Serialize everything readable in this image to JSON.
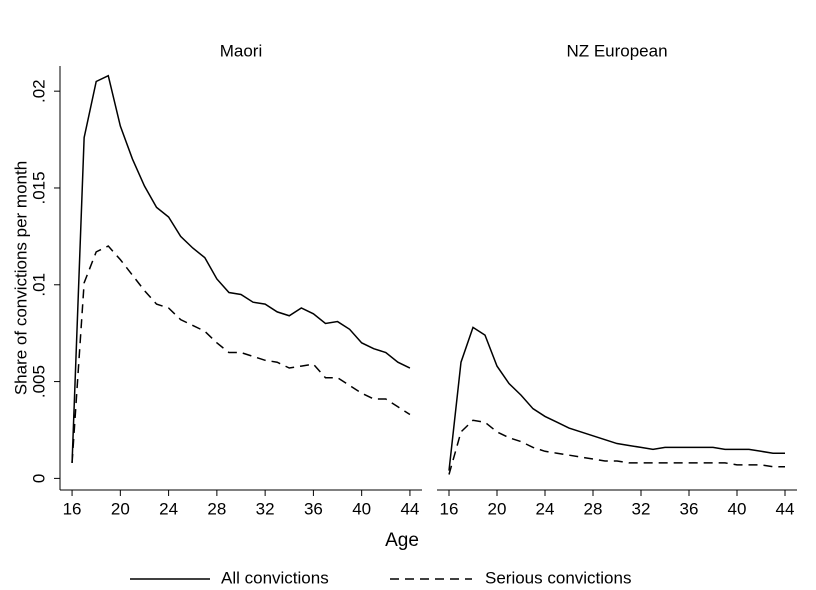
{
  "ylabel": "Share of convictions per month",
  "xlabel": "Age",
  "chart_data": [
    {
      "type": "line",
      "title": "Maori",
      "x": [
        16,
        17,
        18,
        19,
        20,
        21,
        22,
        23,
        24,
        25,
        26,
        27,
        28,
        29,
        30,
        31,
        32,
        33,
        34,
        35,
        36,
        37,
        38,
        39,
        40,
        41,
        42,
        43,
        44
      ],
      "series": [
        {
          "name": "All convictions",
          "color": "#000000",
          "dash": false,
          "values": [
            0.0008,
            0.0176,
            0.0205,
            0.0208,
            0.0182,
            0.0165,
            0.0151,
            0.014,
            0.0135,
            0.0125,
            0.0119,
            0.0114,
            0.0103,
            0.0096,
            0.0095,
            0.0091,
            0.009,
            0.0086,
            0.0084,
            0.0088,
            0.0085,
            0.008,
            0.0081,
            0.0077,
            0.007,
            0.0067,
            0.0065,
            0.006,
            0.0057
          ]
        },
        {
          "name": "Serious convictions",
          "color": "#000000",
          "dash": true,
          "values": [
            0.0008,
            0.0101,
            0.0117,
            0.012,
            0.0113,
            0.0105,
            0.0097,
            0.009,
            0.0088,
            0.0082,
            0.0079,
            0.0076,
            0.007,
            0.0065,
            0.0065,
            0.0063,
            0.0061,
            0.006,
            0.0057,
            0.0058,
            0.0059,
            0.0052,
            0.0052,
            0.0048,
            0.0044,
            0.0041,
            0.0041,
            0.0037,
            0.0033
          ]
        }
      ],
      "xlim": [
        15,
        45
      ],
      "xticks": [
        16,
        20,
        24,
        28,
        32,
        36,
        40,
        44
      ],
      "ylim": [
        -0.0006,
        0.0213
      ],
      "yticks": [
        0,
        {
          "value": 0.005,
          "label": ".005"
        },
        {
          "value": 0.01,
          "label": ".01"
        },
        {
          "value": 0.015,
          "label": ".015"
        },
        {
          "value": 0.02,
          "label": ".02"
        }
      ]
    },
    {
      "type": "line",
      "title": "NZ European",
      "x": [
        16,
        17,
        18,
        19,
        20,
        21,
        22,
        23,
        24,
        25,
        26,
        27,
        28,
        29,
        30,
        31,
        32,
        33,
        34,
        35,
        36,
        37,
        38,
        39,
        40,
        41,
        42,
        43,
        44
      ],
      "series": [
        {
          "name": "All convictions",
          "color": "#000000",
          "dash": false,
          "values": [
            0.0004,
            0.006,
            0.0078,
            0.0074,
            0.0058,
            0.0049,
            0.0043,
            0.0036,
            0.0032,
            0.0029,
            0.0026,
            0.0024,
            0.0022,
            0.002,
            0.0018,
            0.0017,
            0.0016,
            0.0015,
            0.0016,
            0.0016,
            0.0016,
            0.0016,
            0.0016,
            0.0015,
            0.0015,
            0.0015,
            0.0014,
            0.0013,
            0.0013
          ]
        },
        {
          "name": "Serious convictions",
          "color": "#000000",
          "dash": true,
          "values": [
            0.0002,
            0.0024,
            0.003,
            0.0029,
            0.0024,
            0.0021,
            0.0019,
            0.0016,
            0.0014,
            0.0013,
            0.0012,
            0.0011,
            0.001,
            0.0009,
            0.0009,
            0.0008,
            0.0008,
            0.0008,
            0.0008,
            0.0008,
            0.0008,
            0.0008,
            0.0008,
            0.0008,
            0.0007,
            0.0007,
            0.0007,
            0.0006,
            0.0006
          ]
        }
      ],
      "xlim": [
        15,
        45
      ],
      "xticks": [
        16,
        20,
        24,
        28,
        32,
        36,
        40,
        44
      ],
      "ylim": [
        -0.0006,
        0.0213
      ]
    }
  ]
}
